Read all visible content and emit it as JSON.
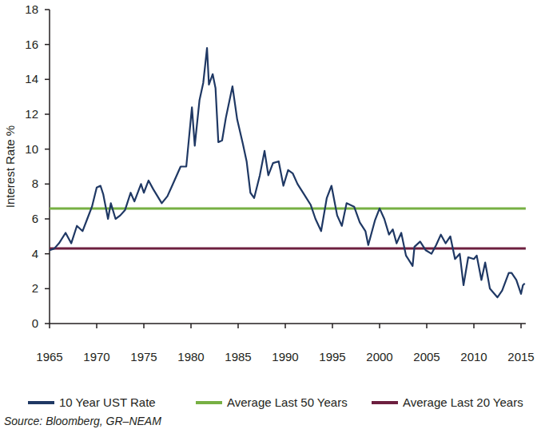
{
  "chart_data": {
    "type": "line",
    "y_label": "Interest Rate %",
    "source": "Source: Bloomberg, GR–NEAM",
    "xlim": [
      1965,
      2015.5
    ],
    "xticks": [
      1965,
      1970,
      1975,
      1980,
      1985,
      1990,
      1995,
      2000,
      2005,
      2010,
      2015
    ],
    "ylim": [
      0,
      18
    ],
    "yticks": [
      0,
      2,
      4,
      6,
      8,
      10,
      12,
      14,
      16,
      18
    ],
    "grid": false,
    "legend": "bottom",
    "x": [
      1965.0,
      1965.5,
      1966.0,
      1966.7,
      1967.3,
      1967.9,
      1968.5,
      1969.0,
      1969.5,
      1970.0,
      1970.4,
      1970.7,
      1971.2,
      1971.5,
      1972.0,
      1972.5,
      1973.0,
      1973.6,
      1974.0,
      1974.7,
      1975.0,
      1975.5,
      1976.0,
      1976.9,
      1977.5,
      1978.0,
      1978.9,
      1979.5,
      1980.1,
      1980.4,
      1980.9,
      1981.3,
      1981.7,
      1981.9,
      1982.3,
      1982.6,
      1982.9,
      1983.3,
      1983.7,
      1984.4,
      1984.9,
      1985.5,
      1985.9,
      1986.3,
      1986.7,
      1987.3,
      1987.8,
      1988.2,
      1988.7,
      1989.3,
      1989.8,
      1990.3,
      1990.8,
      1991.3,
      1992.0,
      1992.7,
      1993.2,
      1993.8,
      1994.4,
      1994.9,
      1995.5,
      1996.0,
      1996.5,
      1997.3,
      1997.9,
      1998.5,
      1998.8,
      1999.5,
      2000.0,
      2000.5,
      2001.0,
      2001.4,
      2001.8,
      2002.3,
      2002.8,
      2003.5,
      2003.7,
      2004.3,
      2004.9,
      2005.5,
      2006.0,
      2006.5,
      2007.0,
      2007.5,
      2008.0,
      2008.5,
      2008.9,
      2009.4,
      2010.0,
      2010.3,
      2010.8,
      2011.2,
      2011.7,
      2012.5,
      2013.0,
      2013.7,
      2014.0,
      2014.5,
      2015.0,
      2015.2,
      2015.4
    ],
    "series": [
      {
        "name": "10 Year UST Rate",
        "type": "line",
        "color": "#1f3864",
        "values": [
          4.2,
          4.3,
          4.6,
          5.2,
          4.6,
          5.6,
          5.3,
          6.0,
          6.7,
          7.8,
          7.9,
          7.4,
          6.0,
          6.9,
          6.0,
          6.2,
          6.5,
          7.5,
          7.0,
          8.0,
          7.5,
          8.2,
          7.7,
          6.9,
          7.3,
          7.9,
          9.0,
          9.0,
          12.4,
          10.2,
          12.8,
          13.8,
          15.8,
          13.7,
          14.3,
          13.5,
          10.4,
          10.5,
          11.8,
          13.6,
          11.7,
          10.3,
          9.3,
          7.5,
          7.2,
          8.5,
          9.9,
          8.5,
          9.2,
          9.3,
          7.9,
          8.8,
          8.6,
          8.0,
          7.4,
          6.8,
          6.0,
          5.3,
          7.2,
          7.9,
          6.2,
          5.6,
          6.9,
          6.7,
          5.8,
          5.3,
          4.5,
          5.9,
          6.6,
          6.0,
          5.1,
          5.4,
          4.6,
          5.2,
          3.9,
          3.3,
          4.4,
          4.7,
          4.2,
          4.0,
          4.5,
          5.1,
          4.6,
          5.0,
          3.7,
          4.0,
          2.2,
          3.8,
          3.7,
          3.9,
          2.5,
          3.5,
          2.0,
          1.5,
          1.9,
          2.9,
          2.9,
          2.5,
          1.7,
          2.2,
          2.3
        ]
      },
      {
        "name": "Average Last 50 Years",
        "type": "line",
        "color": "#77b043",
        "x": [
          1965,
          2015.5
        ],
        "values": [
          6.6,
          6.6
        ]
      },
      {
        "name": "Average Last 20 Years",
        "type": "line",
        "color": "#6d1f3f",
        "x": [
          1965,
          2015.5
        ],
        "values": [
          4.3,
          4.3
        ]
      }
    ]
  }
}
